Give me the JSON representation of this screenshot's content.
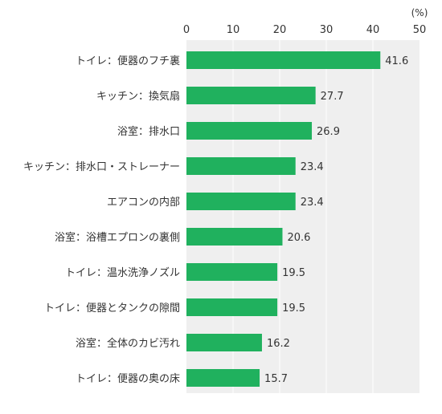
{
  "chart_data": {
    "type": "bar",
    "orientation": "horizontal",
    "unit_label": "(%)",
    "xlim": [
      0,
      50
    ],
    "xticks": [
      0,
      10,
      20,
      30,
      40,
      50
    ],
    "grid": true,
    "categories": [
      "トイレ：便器のフチ裏",
      "キッチン：換気扇",
      "浴室：排水口",
      "キッチン：排水口・ストレーナー",
      "エアコンの内部",
      "浴室：浴槽エプロンの裏側",
      "トイレ：温水洗浄ノズル",
      "トイレ：便器とタンクの隙間",
      "浴室：全体のカビ汚れ",
      "トイレ：便器の奥の床"
    ],
    "values": [
      41.6,
      27.7,
      26.9,
      23.4,
      23.4,
      20.6,
      19.5,
      19.5,
      16.2,
      15.7
    ],
    "value_labels": [
      "41.6",
      "27.7",
      "26.9",
      "23.4",
      "23.4",
      "20.6",
      "19.5",
      "19.5",
      "16.2",
      "15.7"
    ],
    "colors": {
      "bar": "#20b15e",
      "plot_background": "#efefef",
      "grid": "#ffffff"
    }
  }
}
